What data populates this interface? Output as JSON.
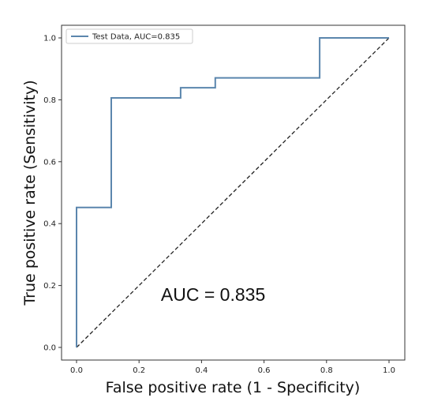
{
  "chart_data": {
    "type": "line",
    "title": "",
    "xlabel": "False positive rate (1 - Specificity)",
    "ylabel": "True positive rate (Sensitivity)",
    "xlim": [
      0.0,
      1.0
    ],
    "ylim": [
      0.0,
      1.0
    ],
    "xticks": [
      "0.0",
      "0.2",
      "0.4",
      "0.6",
      "0.8",
      "1.0"
    ],
    "yticks": [
      "0.0",
      "0.2",
      "0.4",
      "0.6",
      "0.8",
      "1.0"
    ],
    "grid": false,
    "legend_position": "top-left",
    "series": [
      {
        "name": "Test Data, AUC=0.835",
        "color": "#5b86ad",
        "step": true,
        "x": [
          0.0,
          0.0,
          0.0,
          0.111,
          0.111,
          0.333,
          0.333,
          0.444,
          0.444,
          0.778,
          0.778,
          1.0
        ],
        "y": [
          0.0,
          0.452,
          0.452,
          0.452,
          0.806,
          0.806,
          0.839,
          0.839,
          0.871,
          0.871,
          1.0,
          1.0
        ]
      }
    ],
    "reference_line": {
      "style": "dashed",
      "color": "#222222",
      "x": [
        0.0,
        1.0
      ],
      "y": [
        0.0,
        1.0
      ]
    },
    "annotations": [
      {
        "text": "AUC = 0.835",
        "x": 0.27,
        "y": 0.15
      }
    ]
  }
}
